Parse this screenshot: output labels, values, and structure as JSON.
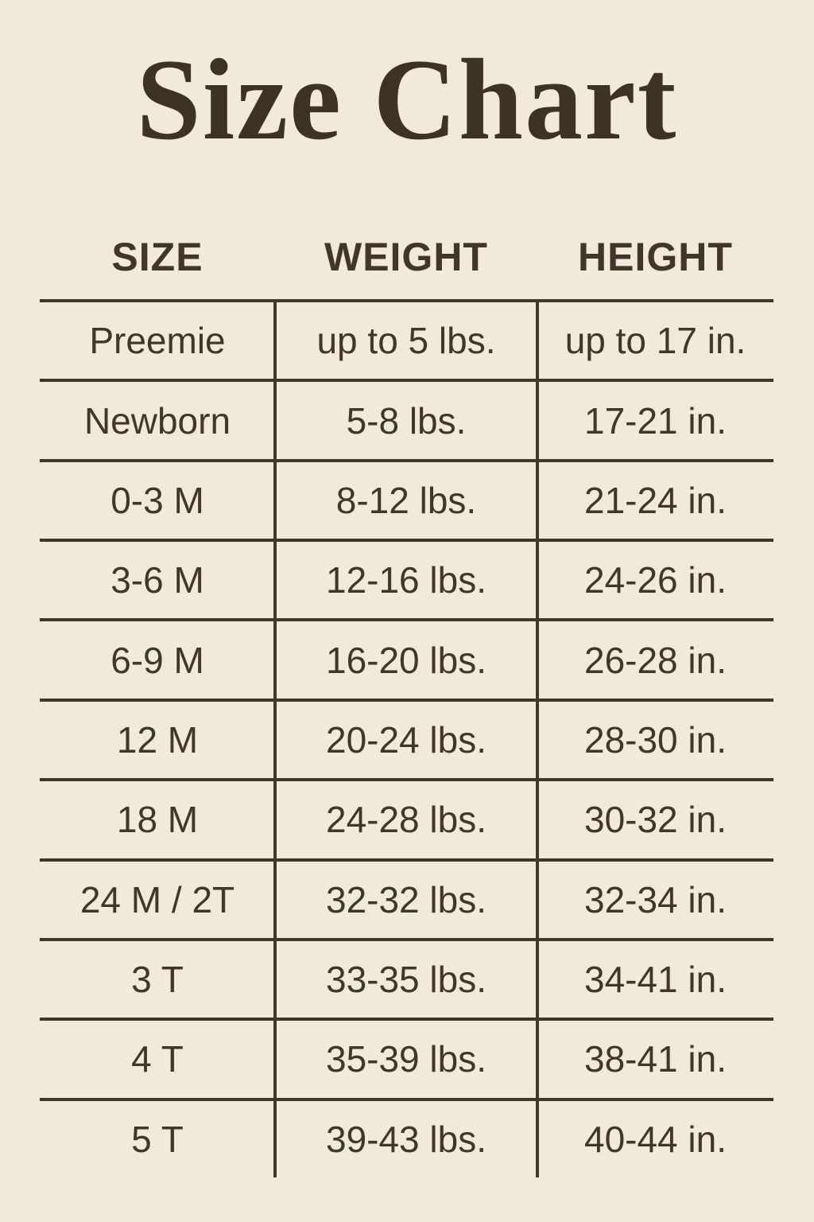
{
  "page": {
    "title": "Size Chart",
    "background_color": "#f1e9da",
    "ink_color": "#42352a"
  },
  "table": {
    "headers": [
      "SIZE",
      "WEIGHT",
      "HEIGHT"
    ],
    "rows": [
      {
        "size": "Preemie",
        "weight": "up to 5 lbs.",
        "height": "up to 17 in."
      },
      {
        "size": "Newborn",
        "weight": "5-8 lbs.",
        "height": "17-21 in."
      },
      {
        "size": "0-3 M",
        "weight": "8-12 lbs.",
        "height": "21-24 in."
      },
      {
        "size": "3-6 M",
        "weight": "12-16 lbs.",
        "height": "24-26 in."
      },
      {
        "size": "6-9 M",
        "weight": "16-20 lbs.",
        "height": "26-28 in."
      },
      {
        "size": "12 M",
        "weight": "20-24 lbs.",
        "height": "28-30 in."
      },
      {
        "size": "18 M",
        "weight": "24-28 lbs.",
        "height": "30-32 in."
      },
      {
        "size": "24 M / 2T",
        "weight": "32-32 lbs.",
        "height": "32-34 in."
      },
      {
        "size": "3 T",
        "weight": "33-35 lbs.",
        "height": "34-41 in."
      },
      {
        "size": "4 T",
        "weight": "35-39 lbs.",
        "height": "38-41 in."
      },
      {
        "size": "5 T",
        "weight": "39-43 lbs.",
        "height": "40-44 in."
      }
    ]
  }
}
